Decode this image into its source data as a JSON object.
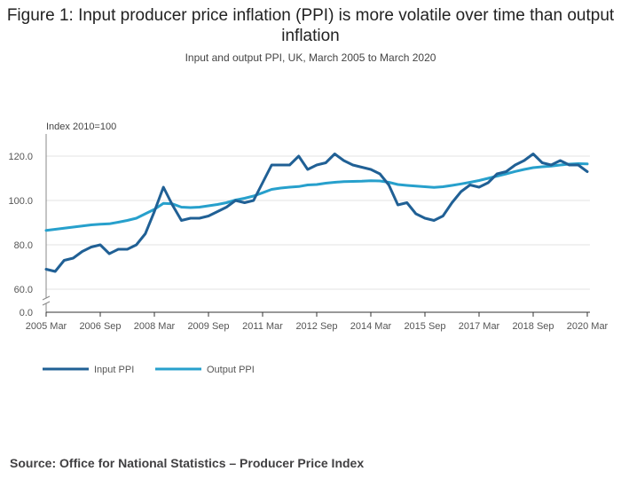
{
  "title": "Figure 1: Input producer price inflation (PPI) is more volatile over time than output inflation",
  "subtitle": "Input and output PPI, UK, March 2005 to March 2020",
  "source": "Source: Office for National Statistics – Producer Price Index",
  "colors": {
    "input": "#206095",
    "output": "#27a0cc",
    "grid": "#e3e3e3",
    "axis": "#555555"
  },
  "chart_data": {
    "type": "line",
    "ylabel": "Index 2010=100",
    "ylim": [
      0,
      130
    ],
    "yticks": [
      "0.0",
      "60.0",
      "80.0",
      "100.0",
      "120.0"
    ],
    "y_axis_break": [
      0,
      60
    ],
    "xticks": [
      "2005 Mar",
      "2006 Sep",
      "2008 Mar",
      "2009 Sep",
      "2011 Mar",
      "2012 Sep",
      "2014 Mar",
      "2015 Sep",
      "2017 Mar",
      "2018 Sep",
      "2020 Mar"
    ],
    "x_range": [
      "2005 Mar",
      "2020 Mar"
    ],
    "grid": "horizontal",
    "legend_position": "bottom-left",
    "series": [
      {
        "name": "Input PPI",
        "x": [
          "2005 Mar",
          "2005 Jun",
          "2005 Sep",
          "2005 Dec",
          "2006 Mar",
          "2006 Jun",
          "2006 Sep",
          "2006 Dec",
          "2007 Mar",
          "2007 Jun",
          "2007 Sep",
          "2007 Dec",
          "2008 Mar",
          "2008 Jun",
          "2008 Sep",
          "2008 Dec",
          "2009 Mar",
          "2009 Jun",
          "2009 Sep",
          "2009 Dec",
          "2010 Mar",
          "2010 Jun",
          "2010 Sep",
          "2010 Dec",
          "2011 Mar",
          "2011 Jun",
          "2011 Sep",
          "2011 Dec",
          "2012 Mar",
          "2012 Jun",
          "2012 Sep",
          "2012 Dec",
          "2013 Mar",
          "2013 Jun",
          "2013 Sep",
          "2013 Dec",
          "2014 Mar",
          "2014 Jun",
          "2014 Sep",
          "2014 Dec",
          "2015 Mar",
          "2015 Jun",
          "2015 Sep",
          "2015 Dec",
          "2016 Mar",
          "2016 Jun",
          "2016 Sep",
          "2016 Dec",
          "2017 Mar",
          "2017 Jun",
          "2017 Sep",
          "2017 Dec",
          "2018 Mar",
          "2018 Jun",
          "2018 Sep",
          "2018 Dec",
          "2019 Mar",
          "2019 Jun",
          "2019 Sep",
          "2019 Dec",
          "2020 Mar"
        ],
        "values": [
          69,
          68,
          73,
          74,
          77,
          79,
          80,
          76,
          78,
          78,
          80,
          85,
          95,
          106,
          98,
          91,
          92,
          92,
          93,
          95,
          97,
          100,
          99,
          100,
          108,
          116,
          116,
          116,
          120,
          114,
          116,
          117,
          121,
          118,
          116,
          115,
          114,
          112,
          107,
          98,
          99,
          94,
          92,
          91,
          93,
          99,
          104,
          107,
          106,
          108,
          112,
          113,
          116,
          118,
          121,
          117,
          116,
          118,
          116,
          116,
          113
        ]
      },
      {
        "name": "Output PPI",
        "x": [
          "2005 Mar",
          "2005 Jun",
          "2005 Sep",
          "2005 Dec",
          "2006 Mar",
          "2006 Jun",
          "2006 Sep",
          "2006 Dec",
          "2007 Mar",
          "2007 Jun",
          "2007 Sep",
          "2007 Dec",
          "2008 Mar",
          "2008 Jun",
          "2008 Sep",
          "2008 Dec",
          "2009 Mar",
          "2009 Jun",
          "2009 Sep",
          "2009 Dec",
          "2010 Mar",
          "2010 Jun",
          "2010 Sep",
          "2010 Dec",
          "2011 Mar",
          "2011 Jun",
          "2011 Sep",
          "2011 Dec",
          "2012 Mar",
          "2012 Jun",
          "2012 Sep",
          "2012 Dec",
          "2013 Mar",
          "2013 Jun",
          "2013 Sep",
          "2013 Dec",
          "2014 Mar",
          "2014 Jun",
          "2014 Sep",
          "2014 Dec",
          "2015 Mar",
          "2015 Jun",
          "2015 Sep",
          "2015 Dec",
          "2016 Mar",
          "2016 Jun",
          "2016 Sep",
          "2016 Dec",
          "2017 Mar",
          "2017 Jun",
          "2017 Sep",
          "2017 Dec",
          "2018 Mar",
          "2018 Jun",
          "2018 Sep",
          "2018 Dec",
          "2019 Mar",
          "2019 Jun",
          "2019 Sep",
          "2019 Dec",
          "2020 Mar"
        ],
        "values": [
          86.5,
          87,
          87.5,
          88,
          88.5,
          89,
          89.3,
          89.5,
          90.2,
          91,
          92,
          94,
          96,
          98.7,
          98.5,
          97,
          96.8,
          97,
          97.6,
          98.2,
          99,
          100.2,
          101,
          102,
          103.5,
          105,
          105.6,
          106,
          106.3,
          107,
          107.2,
          107.8,
          108.2,
          108.5,
          108.6,
          108.7,
          108.9,
          108.8,
          108.2,
          107.2,
          106.8,
          106.5,
          106.2,
          105.9,
          106.2,
          106.8,
          107.5,
          108.2,
          109,
          110,
          111,
          112,
          113.1,
          114,
          114.8,
          115.2,
          115.5,
          116,
          116.4,
          116.6,
          116.5
        ]
      }
    ]
  }
}
